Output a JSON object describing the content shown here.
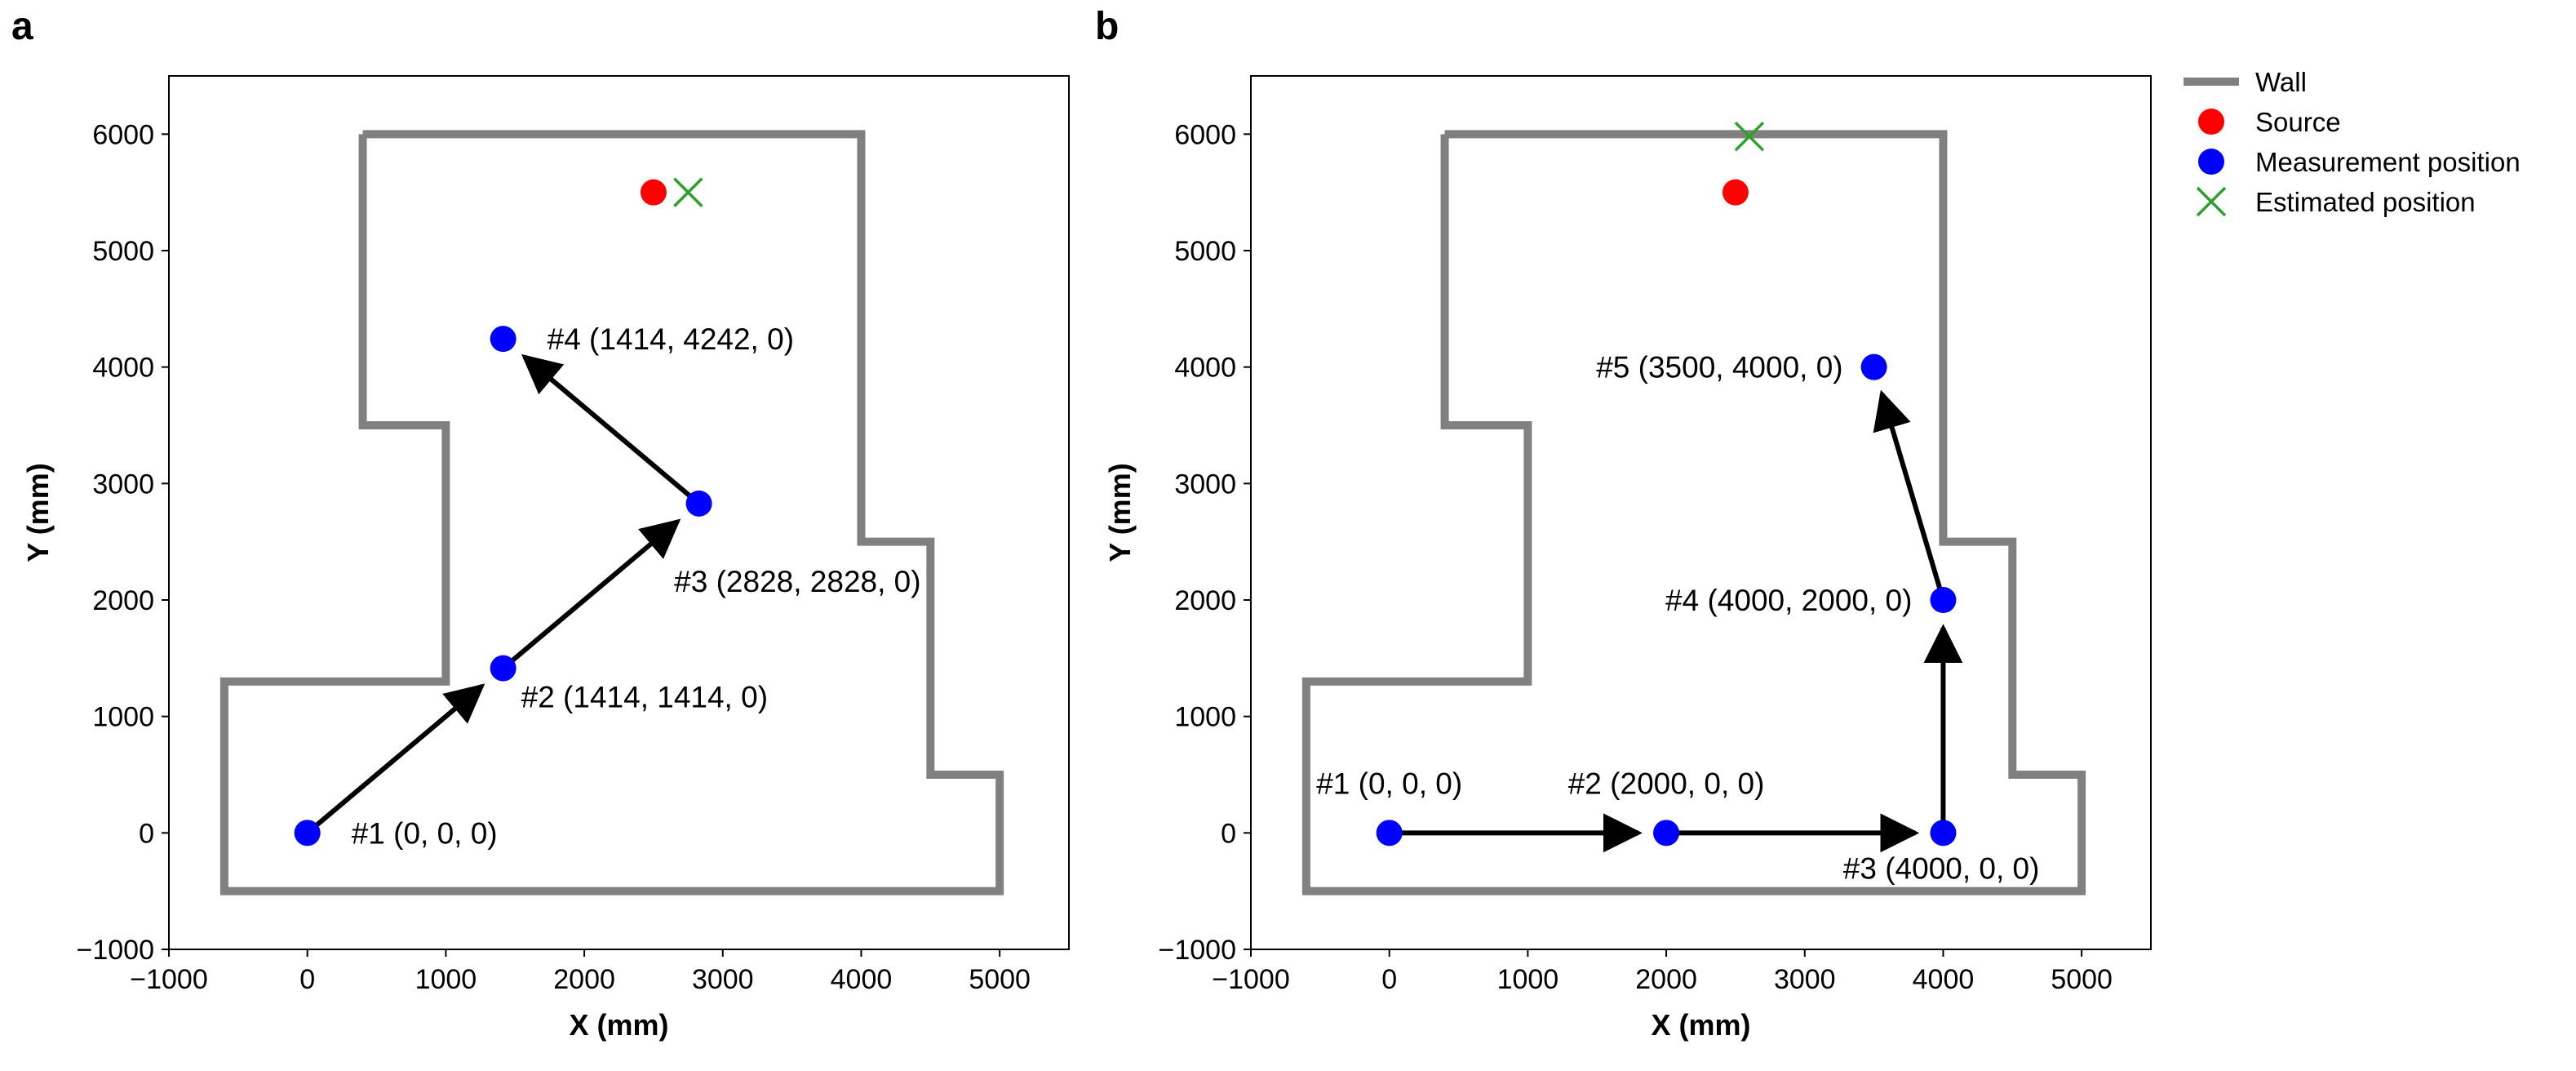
{
  "chart_data": [
    {
      "panel": "a",
      "type": "scatter",
      "xlabel": "X (mm)",
      "ylabel": "Y (mm)",
      "xlim": [
        -1000,
        5500
      ],
      "ylim": [
        -1000,
        6500
      ],
      "xticks": [
        -1000,
        0,
        1000,
        2000,
        3000,
        4000,
        5000
      ],
      "yticks": [
        -1000,
        0,
        1000,
        2000,
        3000,
        4000,
        5000,
        6000
      ],
      "colors": {
        "wall": "#808080",
        "source": "#ff0000",
        "measurement": "#0000ff",
        "estimated": "#2ca02c",
        "arrow": "#000000"
      },
      "wall": [
        [
          400,
          6000
        ],
        [
          4000,
          6000
        ],
        [
          4000,
          2500
        ],
        [
          4500,
          2500
        ],
        [
          4500,
          500
        ],
        [
          5000,
          500
        ],
        [
          5000,
          -500
        ],
        [
          -600,
          -500
        ],
        [
          -600,
          1300
        ],
        [
          1000,
          1300
        ],
        [
          1000,
          3500
        ],
        [
          400,
          3500
        ],
        [
          400,
          6000
        ]
      ],
      "source": {
        "x": 2500,
        "y": 5500
      },
      "estimated": {
        "x": 2750,
        "y": 5500
      },
      "measurements": [
        {
          "x": 0,
          "y": 0,
          "label": "#1 (0, 0, 0)",
          "anchor": "right"
        },
        {
          "x": 1414,
          "y": 1414,
          "label": "#2 (1414, 1414, 0)",
          "anchor": "below-right"
        },
        {
          "x": 2828,
          "y": 2828,
          "label": "#3 (2828, 2828, 0)",
          "anchor": "below-left"
        },
        {
          "x": 1414,
          "y": 4242,
          "label": "#4 (1414, 4242, 0)",
          "anchor": "right"
        }
      ],
      "arrows": [
        [
          0,
          1
        ],
        [
          1,
          2
        ],
        [
          2,
          3
        ]
      ]
    },
    {
      "panel": "b",
      "type": "scatter",
      "xlabel": "X (mm)",
      "ylabel": "Y (mm)",
      "xlim": [
        -1000,
        5500
      ],
      "ylim": [
        -1000,
        6500
      ],
      "xticks": [
        -1000,
        0,
        1000,
        2000,
        3000,
        4000,
        5000
      ],
      "yticks": [
        -1000,
        0,
        1000,
        2000,
        3000,
        4000,
        5000,
        6000
      ],
      "colors": {
        "wall": "#808080",
        "source": "#ff0000",
        "measurement": "#0000ff",
        "estimated": "#2ca02c",
        "arrow": "#000000"
      },
      "wall": [
        [
          400,
          6000
        ],
        [
          4000,
          6000
        ],
        [
          4000,
          2500
        ],
        [
          4500,
          2500
        ],
        [
          4500,
          500
        ],
        [
          5000,
          500
        ],
        [
          5000,
          -500
        ],
        [
          -600,
          -500
        ],
        [
          -600,
          1300
        ],
        [
          1000,
          1300
        ],
        [
          1000,
          3500
        ],
        [
          400,
          3500
        ],
        [
          400,
          6000
        ]
      ],
      "source": {
        "x": 2500,
        "y": 5500
      },
      "estimated": {
        "x": 2600,
        "y": 5980
      },
      "measurements": [
        {
          "x": 0,
          "y": 0,
          "label": "#1 (0, 0, 0)",
          "anchor": "above"
        },
        {
          "x": 2000,
          "y": 0,
          "label": "#2 (2000, 0, 0)",
          "anchor": "above"
        },
        {
          "x": 4000,
          "y": 0,
          "label": "#3 (4000, 0, 0)",
          "anchor": "below-left"
        },
        {
          "x": 4000,
          "y": 2000,
          "label": "#4 (4000, 2000, 0)",
          "anchor": "left"
        },
        {
          "x": 3500,
          "y": 4000,
          "label": "#5 (3500, 4000, 0)",
          "anchor": "left"
        }
      ],
      "arrows": [
        [
          0,
          1
        ],
        [
          1,
          2
        ],
        [
          2,
          3
        ],
        [
          3,
          4
        ]
      ]
    }
  ],
  "legend": {
    "position": "right of panel b",
    "items": [
      {
        "label": "Wall",
        "marker": "line",
        "color": "#808080"
      },
      {
        "label": "Source",
        "marker": "circle",
        "color": "#ff0000"
      },
      {
        "label": "Measurement position",
        "marker": "circle",
        "color": "#0000ff"
      },
      {
        "label": "Estimated position",
        "marker": "x",
        "color": "#2ca02c"
      }
    ]
  }
}
